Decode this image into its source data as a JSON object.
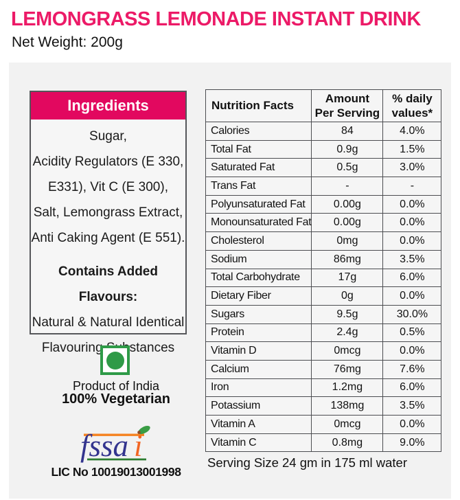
{
  "header": {
    "title": "LEMONGRASS LEMONADE INSTANT DRINK",
    "net_weight": "Net Weight: 200g"
  },
  "ingredients": {
    "header": "Ingredients",
    "lines": [
      "Sugar,",
      "Acidity Regulators (E 330,",
      "E331), Vit C (E 300),",
      "Salt, Lemongrass Extract,",
      "Anti Caking Agent (E 551)."
    ],
    "flavours_heading": "Contains Added Flavours:",
    "flavours_lines": [
      "Natural & Natural Identical",
      "Flavouring Substances"
    ]
  },
  "veg": {
    "product_of_india": "Product of India",
    "vegetarian": "100% Vegetarian"
  },
  "fssai": {
    "logo_fssa": "fssa",
    "logo_i": "i",
    "license": "LIC No 10019013001998"
  },
  "nutrition": {
    "columns": {
      "label": "Nutrition Facts",
      "amount": "Amount\nPer Serving",
      "daily": "% daily\nvalues*"
    },
    "rows": [
      {
        "label": "Calories",
        "amount": "84",
        "daily": "4.0%"
      },
      {
        "label": "Total Fat",
        "amount": "0.9g",
        "daily": "1.5%"
      },
      {
        "label": "Saturated Fat",
        "amount": "0.5g",
        "daily": "3.0%"
      },
      {
        "label": "Trans Fat",
        "amount": "-",
        "daily": "-"
      },
      {
        "label": "Polyunsaturated Fat",
        "amount": "0.00g",
        "daily": "0.0%"
      },
      {
        "label": "Monounsaturated Fat",
        "amount": "0.00g",
        "daily": "0.0%"
      },
      {
        "label": "Cholesterol",
        "amount": "0mg",
        "daily": "0.0%"
      },
      {
        "label": "Sodium",
        "amount": "86mg",
        "daily": "3.5%"
      },
      {
        "label": "Total Carbohydrate",
        "amount": "17g",
        "daily": "6.0%"
      },
      {
        "label": "Dietary Fiber",
        "amount": "0g",
        "daily": "0.0%"
      },
      {
        "label": "Sugars",
        "amount": "9.5g",
        "daily": "30.0%"
      },
      {
        "label": "Protein",
        "amount": "2.4g",
        "daily": "0.5%"
      },
      {
        "label": "Vitamin D",
        "amount": "0mcg",
        "daily": "0.0%"
      },
      {
        "label": "Calcium",
        "amount": "76mg",
        "daily": "7.6%"
      },
      {
        "label": "Iron",
        "amount": "1.2mg",
        "daily": "6.0%"
      },
      {
        "label": "Potassium",
        "amount": "138mg",
        "daily": "3.5%"
      },
      {
        "label": "Vitamin A",
        "amount": "0mcg",
        "daily": "0.0%"
      },
      {
        "label": "Vitamin C",
        "amount": "0.8mg",
        "daily": "9.0%"
      }
    ],
    "serving_size": "Serving Size 24 gm in 175 ml water"
  },
  "colors": {
    "title_pink": "#EC1A67",
    "ingredients_header_pink": "#E2085F",
    "veg_green": "#2E9A47",
    "fssai_blue": "#33348E",
    "fssai_orange": "#F26522",
    "fssai_line_green": "#2E7D32",
    "panel_gray": "#f2f2f2"
  }
}
